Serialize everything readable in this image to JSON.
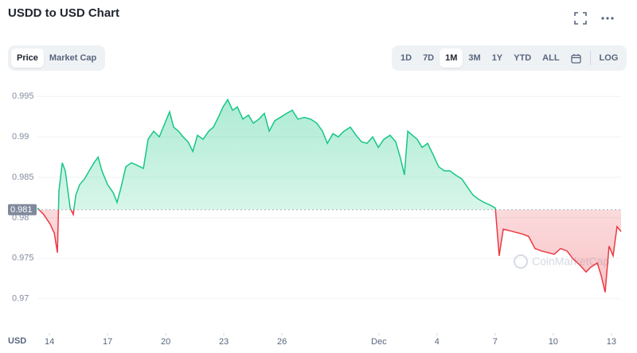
{
  "title": "USDD to USD Chart",
  "toggles": [
    "Price",
    "Market Cap"
  ],
  "active_toggle": 0,
  "ranges": [
    "1D",
    "7D",
    "1M",
    "3M",
    "1Y",
    "YTD",
    "ALL"
  ],
  "active_range": 2,
  "log": "LOG",
  "chart_data": {
    "type": "line",
    "y_label": "USD",
    "watermark": "CoinMarketCap",
    "baseline": 0.981,
    "above_color": "#16c784",
    "below_color": "#ea3943",
    "grid": true,
    "xlim": [
      13.38,
      43.5
    ],
    "ylim": [
      0.9685,
      0.9965
    ],
    "yticks": [
      0.97,
      0.975,
      0.98,
      0.985,
      0.99,
      0.995
    ],
    "xticks": [
      14,
      17,
      20,
      23,
      26,
      {
        "value": 31,
        "label": "Dec"
      },
      {
        "value": 34,
        "label": "4"
      },
      {
        "value": 37,
        "label": "7"
      },
      {
        "value": 40,
        "label": "10"
      },
      {
        "value": 43,
        "label": "13"
      }
    ],
    "x": [
      13.38,
      13.71,
      14.04,
      14.25,
      14.41,
      14.49,
      14.66,
      14.82,
      15.07,
      15.23,
      15.36,
      15.56,
      15.81,
      16.05,
      16.3,
      16.51,
      16.71,
      17.0,
      17.29,
      17.49,
      17.7,
      17.94,
      18.23,
      18.52,
      18.85,
      19.09,
      19.38,
      19.67,
      19.96,
      20.2,
      20.41,
      20.66,
      20.9,
      21.15,
      21.4,
      21.64,
      21.93,
      22.22,
      22.46,
      22.71,
      22.96,
      23.2,
      23.45,
      23.7,
      23.98,
      24.27,
      24.52,
      24.81,
      25.09,
      25.34,
      25.63,
      25.91,
      26.24,
      26.53,
      26.82,
      27.15,
      27.48,
      27.8,
      28.09,
      28.34,
      28.63,
      28.91,
      29.2,
      29.53,
      29.82,
      30.11,
      30.39,
      30.68,
      30.97,
      31.26,
      31.58,
      31.87,
      32.12,
      32.32,
      32.49,
      32.73,
      32.98,
      33.23,
      33.52,
      33.8,
      34.09,
      34.38,
      34.67,
      34.95,
      35.28,
      35.57,
      35.86,
      36.14,
      36.43,
      36.72,
      37.01,
      37.21,
      37.42,
      37.75,
      38.08,
      38.4,
      38.73,
      39.06,
      39.39,
      39.72,
      40.05,
      40.38,
      40.71,
      41.03,
      41.36,
      41.69,
      41.94,
      42.27,
      42.47,
      42.68,
      42.88,
      43.09,
      43.29,
      43.5
    ],
    "values": [
      0.9812,
      0.9804,
      0.9792,
      0.9781,
      0.9757,
      0.9833,
      0.9868,
      0.9858,
      0.9812,
      0.9804,
      0.9828,
      0.9841,
      0.9848,
      0.9858,
      0.9868,
      0.9875,
      0.9858,
      0.9841,
      0.9831,
      0.9819,
      0.9838,
      0.9863,
      0.9868,
      0.9865,
      0.9861,
      0.9897,
      0.9907,
      0.99,
      0.9917,
      0.9931,
      0.9912,
      0.9907,
      0.99,
      0.9894,
      0.9882,
      0.9902,
      0.9897,
      0.9907,
      0.9912,
      0.9924,
      0.9937,
      0.9946,
      0.9933,
      0.9937,
      0.9922,
      0.9927,
      0.9917,
      0.9922,
      0.9929,
      0.9907,
      0.992,
      0.9924,
      0.9929,
      0.9933,
      0.9922,
      0.9924,
      0.9922,
      0.9917,
      0.9907,
      0.9892,
      0.9904,
      0.99,
      0.9907,
      0.9912,
      0.9902,
      0.9894,
      0.9892,
      0.99,
      0.9887,
      0.9897,
      0.9902,
      0.9894,
      0.9873,
      0.9853,
      0.9907,
      0.9902,
      0.9897,
      0.9887,
      0.9892,
      0.9878,
      0.9863,
      0.9858,
      0.9858,
      0.9853,
      0.9848,
      0.9838,
      0.9828,
      0.9823,
      0.9819,
      0.9816,
      0.9812,
      0.9753,
      0.9786,
      0.9784,
      0.9782,
      0.978,
      0.9777,
      0.9762,
      0.9759,
      0.9757,
      0.9755,
      0.9762,
      0.9759,
      0.9749,
      0.9742,
      0.9733,
      0.9739,
      0.9744,
      0.9729,
      0.9708,
      0.9765,
      0.9753,
      0.9789,
      0.9783
    ]
  }
}
